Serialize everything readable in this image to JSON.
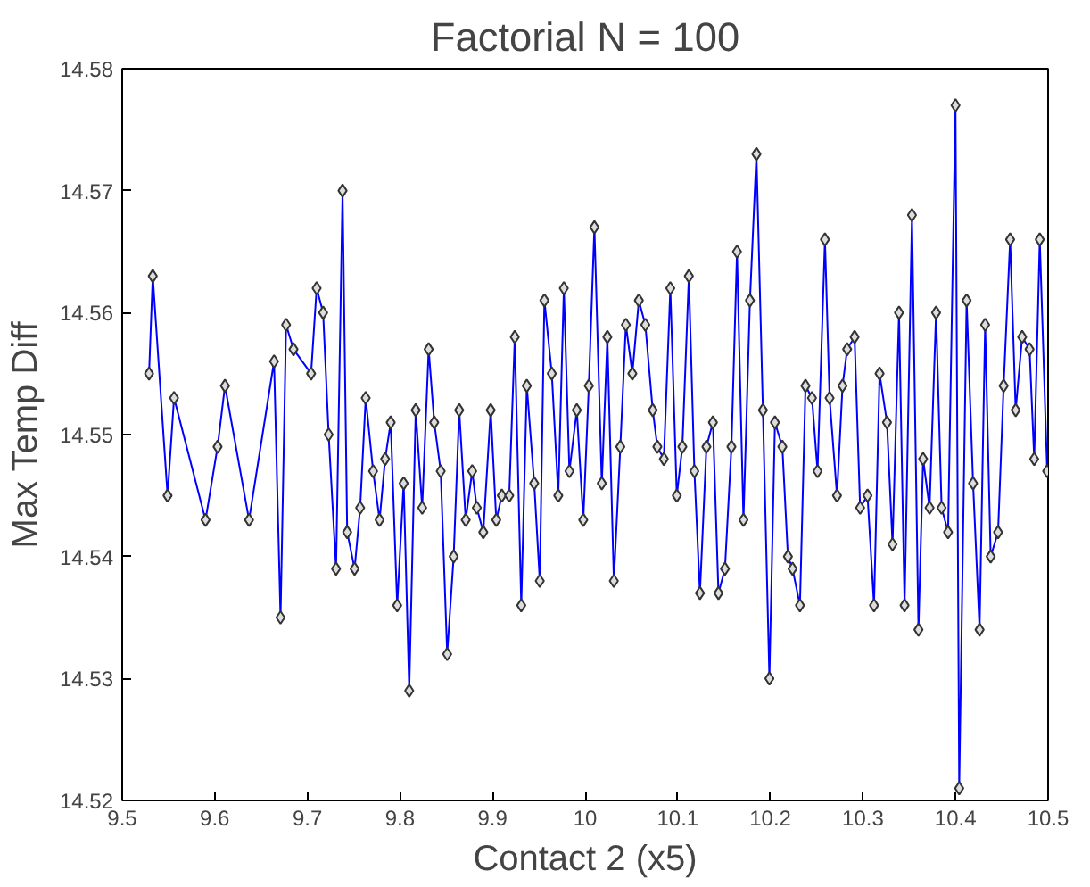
{
  "chart_data": {
    "type": "line",
    "title": "Factorial N = 100",
    "xlabel": "Contact 2 (x5)",
    "ylabel": "Max Temp Diff",
    "marker": "diamond",
    "line_style": "solid",
    "xlim": [
      9.5,
      10.5
    ],
    "ylim": [
      14.52,
      14.58
    ],
    "xticks": [
      9.5,
      9.6,
      9.7,
      9.8,
      9.9,
      10,
      10.1,
      10.2,
      10.3,
      10.4,
      10.5
    ],
    "yticks": [
      14.52,
      14.53,
      14.54,
      14.55,
      14.56,
      14.57,
      14.58
    ],
    "series": [
      {
        "color": "#0000ff",
        "x": [
          9.529,
          9.533,
          9.549,
          9.556,
          9.59,
          9.603,
          9.611,
          9.637,
          9.664,
          9.671,
          9.677,
          9.685,
          9.704,
          9.71,
          9.717,
          9.723,
          9.731,
          9.738,
          9.743,
          9.751,
          9.757,
          9.763,
          9.771,
          9.778,
          9.784,
          9.79,
          9.797,
          9.804,
          9.81,
          9.817,
          9.824,
          9.831,
          9.837,
          9.844,
          9.851,
          9.858,
          9.864,
          9.871,
          9.878,
          9.883,
          9.89,
          9.898,
          9.904,
          9.91,
          9.918,
          9.924,
          9.931,
          9.937,
          9.945,
          9.951,
          9.956,
          9.964,
          9.971,
          9.977,
          9.983,
          9.991,
          9.998,
          10.004,
          10.01,
          10.018,
          10.024,
          10.031,
          10.038,
          10.044,
          10.051,
          10.058,
          10.065,
          10.073,
          10.078,
          10.085,
          10.092,
          10.099,
          10.105,
          10.112,
          10.118,
          10.124,
          10.131,
          10.138,
          10.144,
          10.151,
          10.158,
          10.164,
          10.171,
          10.178,
          10.185,
          10.192,
          10.199,
          10.205,
          10.213,
          10.219,
          10.224,
          10.232,
          10.238,
          10.245,
          10.251,
          10.259,
          10.264,
          10.272,
          10.278,
          10.283,
          10.291,
          10.297,
          10.305,
          10.312,
          10.318,
          10.326,
          10.332,
          10.339,
          10.345,
          10.353,
          10.36,
          10.365,
          10.372,
          10.379,
          10.385,
          10.392,
          10.4,
          10.404,
          10.412,
          10.419,
          10.426,
          10.432,
          10.438,
          10.446,
          10.452,
          10.459,
          10.465,
          10.472,
          10.48,
          10.485,
          10.491,
          10.499
        ],
        "values": [
          14.555,
          14.563,
          14.545,
          14.553,
          14.543,
          14.549,
          14.554,
          14.543,
          14.556,
          14.535,
          14.559,
          14.557,
          14.555,
          14.562,
          14.56,
          14.55,
          14.539,
          14.57,
          14.542,
          14.539,
          14.544,
          14.553,
          14.547,
          14.543,
          14.548,
          14.551,
          14.536,
          14.546,
          14.529,
          14.552,
          14.544,
          14.557,
          14.551,
          14.547,
          14.532,
          14.54,
          14.552,
          14.543,
          14.547,
          14.544,
          14.542,
          14.552,
          14.543,
          14.545,
          14.545,
          14.558,
          14.536,
          14.554,
          14.546,
          14.538,
          14.561,
          14.555,
          14.545,
          14.562,
          14.547,
          14.552,
          14.543,
          14.554,
          14.567,
          14.546,
          14.558,
          14.538,
          14.549,
          14.559,
          14.555,
          14.561,
          14.559,
          14.552,
          14.549,
          14.548,
          14.562,
          14.545,
          14.549,
          14.563,
          14.547,
          14.537,
          14.549,
          14.551,
          14.537,
          14.539,
          14.549,
          14.565,
          14.543,
          14.561,
          14.573,
          14.552,
          14.53,
          14.551,
          14.549,
          14.54,
          14.539,
          14.536,
          14.554,
          14.553,
          14.547,
          14.566,
          14.553,
          14.545,
          14.554,
          14.557,
          14.558,
          14.544,
          14.545,
          14.536,
          14.555,
          14.551,
          14.541,
          14.56,
          14.536,
          14.568,
          14.534,
          14.548,
          14.544,
          14.56,
          14.544,
          14.542,
          14.577,
          14.521,
          14.561,
          14.546,
          14.534,
          14.559,
          14.54,
          14.542,
          14.554,
          14.566,
          14.552,
          14.558,
          14.557,
          14.548,
          14.566,
          14.547
        ]
      }
    ]
  }
}
